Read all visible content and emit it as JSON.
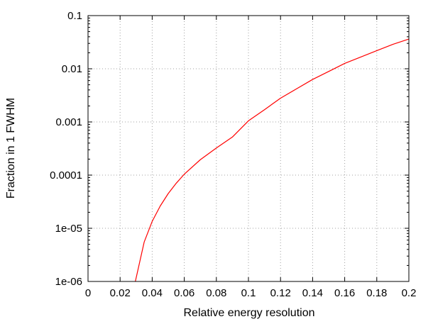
{
  "chart_data": {
    "type": "line",
    "title": "",
    "xlabel": "Relative energy resolution",
    "ylabel": "Fraction in 1 FWHM",
    "xlim": [
      0,
      0.2
    ],
    "ylim": [
      1e-06,
      0.1
    ],
    "yscale": "log",
    "grid": true,
    "x_ticks": [
      0,
      0.02,
      0.04,
      0.06,
      0.08,
      0.1,
      0.12,
      0.14,
      0.16,
      0.18,
      0.2
    ],
    "x_tick_labels": [
      "0",
      "0.02",
      "0.04",
      "0.06",
      "0.08",
      "0.1",
      "0.12",
      "0.14",
      "0.16",
      "0.18",
      "0.2"
    ],
    "y_ticks": [
      1e-06,
      1e-05,
      0.0001,
      0.001,
      0.01,
      0.1
    ],
    "y_tick_labels": [
      "1e-06",
      "1e-05",
      "0.0001",
      "0.001",
      "0.01",
      "0.1"
    ],
    "series": [
      {
        "color": "#ff0000",
        "x": [
          0.0295,
          0.035,
          0.04,
          0.045,
          0.05,
          0.055,
          0.06,
          0.07,
          0.08,
          0.09,
          0.1,
          0.11,
          0.12,
          0.13,
          0.14,
          0.15,
          0.16,
          0.17,
          0.18,
          0.19,
          0.2
        ],
        "y": [
          1e-06,
          5.5e-06,
          1.35e-05,
          2.62e-05,
          4.5e-05,
          7.04e-05,
          0.000104,
          0.000195,
          0.000324,
          0.00052,
          0.00105,
          0.0017,
          0.0028,
          0.0042,
          0.0063,
          0.0089,
          0.0126,
          0.0166,
          0.0219,
          0.0288,
          0.0363
        ]
      }
    ]
  }
}
